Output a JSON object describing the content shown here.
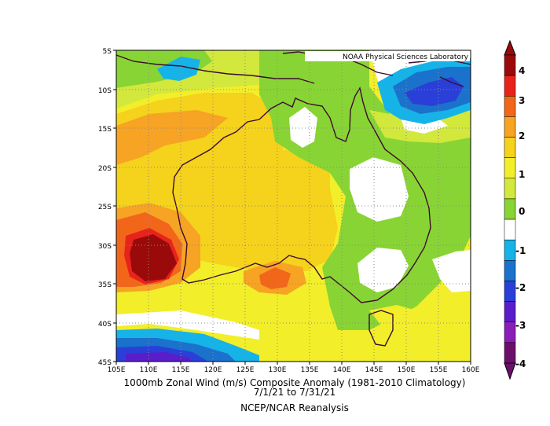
{
  "credit": "NOAA Physical Sciences Laboratory",
  "lat_labels": [
    "5S",
    "10S",
    "15S",
    "20S",
    "25S",
    "30S",
    "35S",
    "40S",
    "45S"
  ],
  "lon_labels": [
    "105E",
    "110E",
    "115E",
    "120E",
    "125E",
    "130E",
    "135E",
    "140E",
    "145E",
    "150E",
    "155E",
    "160E"
  ],
  "colorbar": {
    "labels": [
      "4",
      "3",
      "2",
      "1",
      "0",
      "-1",
      "-2",
      "-3",
      "-4"
    ],
    "colors": [
      "#9b0a0a",
      "#e8231c",
      "#f2661a",
      "#f7a324",
      "#f5d21c",
      "#f2ee2a",
      "#d2e83c",
      "#88d434",
      "#ffffff",
      "#16b3e8",
      "#1a72cc",
      "#2a3fd8",
      "#5a1dc9",
      "#8a1fb8",
      "#6b0f6b"
    ]
  },
  "caption": {
    "line1": "1000mb Zonal Wind (m/s) Composite Anomaly (1981-2010 Climatology)",
    "line2": "7/1/21   to 7/31/21",
    "line3": "NCEP/NCAR Reanalysis"
  }
}
